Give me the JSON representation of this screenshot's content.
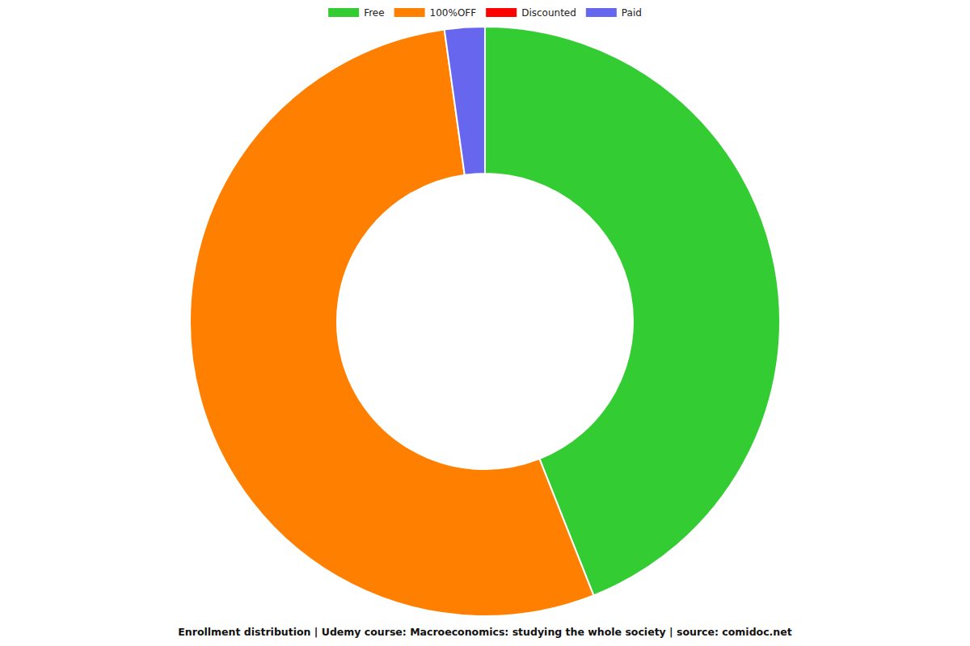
{
  "chart_data": {
    "type": "pie",
    "title": "Enrollment distribution | Udemy course: Macroeconomics: studying the whole society | source: comidoc.net",
    "categories": [
      "Free",
      "100%OFF",
      "Discounted",
      "Paid"
    ],
    "values": [
      44,
      53.8,
      0,
      2.2
    ],
    "colors": [
      "#33cc33",
      "#ff8000",
      "#ff0000",
      "#6666ee"
    ],
    "legend": "top"
  }
}
